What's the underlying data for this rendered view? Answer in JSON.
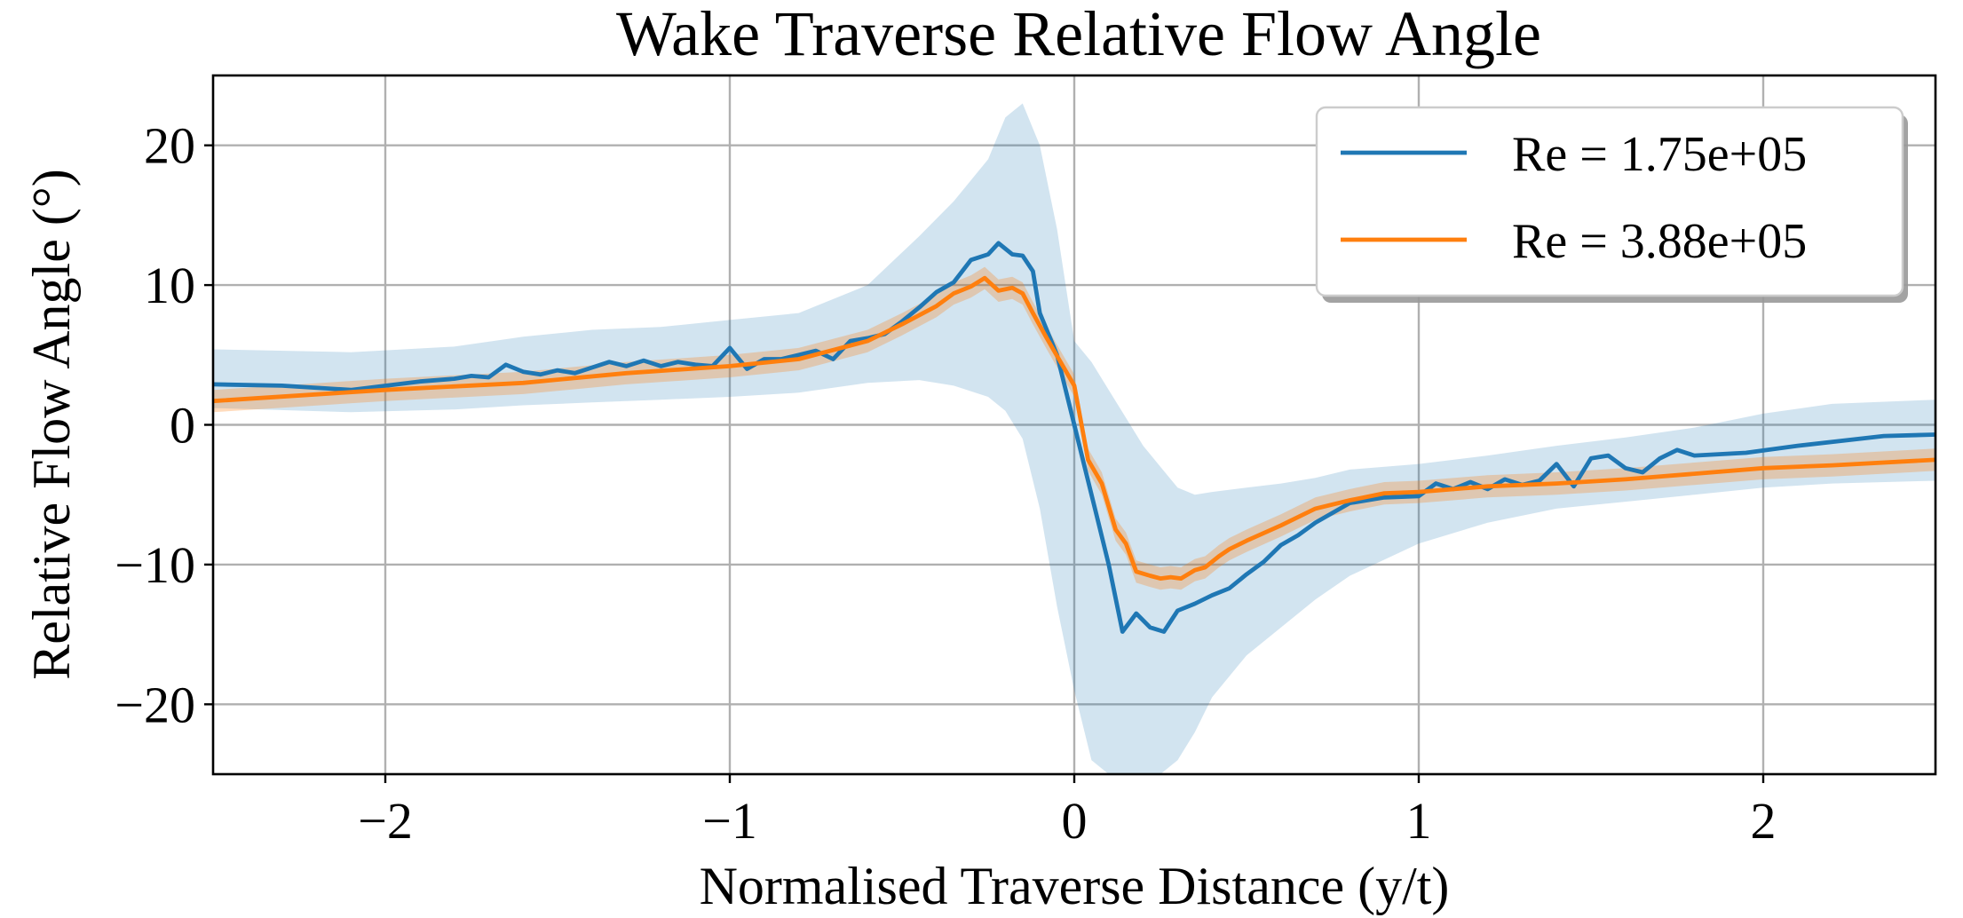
{
  "chart_data": {
    "type": "line",
    "title": "Wake Traverse Relative Flow Angle",
    "xlabel": "Normalised Traverse Distance (y/t)",
    "ylabel": "Relative Flow Angle (°)",
    "xlim": [
      -2.5,
      2.5
    ],
    "ylim": [
      -25,
      25
    ],
    "xticks": [
      -2,
      -1,
      0,
      1,
      2
    ],
    "xtick_labels": [
      "−2",
      "−1",
      "0",
      "1",
      "2"
    ],
    "yticks": [
      -20,
      -10,
      0,
      10,
      20
    ],
    "ytick_labels": [
      "−20",
      "−10",
      "0",
      "10",
      "20"
    ],
    "grid": true,
    "legend_position": "top-right",
    "series": [
      {
        "name": "Re = 1.75e+05",
        "color": "#1f77b4",
        "band_color": "#1f77b4",
        "x": [
          -2.5,
          -2.3,
          -2.1,
          -1.9,
          -1.8,
          -1.75,
          -1.7,
          -1.65,
          -1.6,
          -1.55,
          -1.5,
          -1.45,
          -1.4,
          -1.35,
          -1.3,
          -1.25,
          -1.2,
          -1.15,
          -1.1,
          -1.05,
          -1.0,
          -0.95,
          -0.9,
          -0.85,
          -0.8,
          -0.75,
          -0.7,
          -0.65,
          -0.6,
          -0.55,
          -0.5,
          -0.45,
          -0.4,
          -0.35,
          -0.3,
          -0.25,
          -0.22,
          -0.18,
          -0.15,
          -0.12,
          -0.1,
          -0.05,
          0.0,
          0.03,
          0.06,
          0.1,
          0.14,
          0.18,
          0.22,
          0.26,
          0.3,
          0.35,
          0.4,
          0.45,
          0.5,
          0.55,
          0.6,
          0.65,
          0.7,
          0.8,
          0.9,
          1.0,
          1.05,
          1.1,
          1.15,
          1.2,
          1.25,
          1.3,
          1.35,
          1.4,
          1.45,
          1.5,
          1.55,
          1.6,
          1.65,
          1.7,
          1.75,
          1.8,
          1.95,
          2.1,
          2.35,
          2.5
        ],
        "y": [
          2.9,
          2.8,
          2.5,
          3.1,
          3.3,
          3.5,
          3.4,
          4.3,
          3.8,
          3.6,
          3.9,
          3.7,
          4.1,
          4.5,
          4.2,
          4.6,
          4.2,
          4.5,
          4.3,
          4.2,
          5.5,
          4.0,
          4.7,
          4.7,
          5.0,
          5.3,
          4.7,
          6.0,
          6.2,
          6.5,
          7.4,
          8.4,
          9.5,
          10.2,
          11.8,
          12.2,
          13.0,
          12.2,
          12.1,
          11.0,
          8.0,
          5.0,
          0.0,
          -3.0,
          -6.0,
          -10.0,
          -14.8,
          -13.5,
          -14.5,
          -14.8,
          -13.3,
          -12.8,
          -12.2,
          -11.7,
          -10.7,
          -9.8,
          -8.6,
          -7.9,
          -7.0,
          -5.6,
          -5.2,
          -5.1,
          -4.2,
          -4.6,
          -4.1,
          -4.6,
          -3.9,
          -4.3,
          -4.0,
          -2.8,
          -4.4,
          -2.4,
          -2.2,
          -3.1,
          -3.4,
          -2.4,
          -1.8,
          -2.2,
          -2.0,
          -1.5,
          -0.8,
          -0.7
        ],
        "band_x": [
          -2.5,
          -2.1,
          -1.8,
          -1.6,
          -1.4,
          -1.2,
          -1.0,
          -0.8,
          -0.6,
          -0.45,
          -0.35,
          -0.25,
          -0.2,
          -0.15,
          -0.1,
          -0.05,
          0.0,
          0.05,
          0.1,
          0.15,
          0.2,
          0.25,
          0.3,
          0.35,
          0.4,
          0.5,
          0.6,
          0.7,
          0.8,
          1.0,
          1.2,
          1.4,
          1.6,
          1.8,
          2.0,
          2.2,
          2.5
        ],
        "band_upper": [
          5.4,
          5.2,
          5.6,
          6.3,
          6.8,
          7.0,
          7.5,
          8.0,
          10.0,
          13.5,
          16.0,
          19.0,
          22.0,
          23.0,
          20.0,
          14.0,
          6.0,
          4.5,
          2.5,
          0.5,
          -1.5,
          -3.0,
          -4.5,
          -5.0,
          -4.8,
          -4.5,
          -4.2,
          -3.8,
          -3.2,
          -2.8,
          -2.2,
          -1.5,
          -0.9,
          -0.2,
          0.8,
          1.5,
          1.8
        ],
        "band_lower": [
          1.2,
          0.9,
          1.1,
          1.4,
          1.6,
          1.8,
          2.0,
          2.3,
          3.0,
          3.2,
          2.8,
          2.0,
          1.0,
          -1.0,
          -6.0,
          -13.0,
          -19.0,
          -24.0,
          -25.0,
          -25.0,
          -25.0,
          -25.0,
          -24.0,
          -22.0,
          -19.5,
          -16.5,
          -14.5,
          -12.5,
          -10.8,
          -8.5,
          -7.0,
          -6.0,
          -5.5,
          -5.0,
          -4.5,
          -4.2,
          -4.0
        ]
      },
      {
        "name": "Re = 3.88e+05",
        "color": "#ff7f0e",
        "band_color": "#ff7f0e",
        "x": [
          -2.5,
          -2.0,
          -1.6,
          -1.3,
          -1.0,
          -0.8,
          -0.6,
          -0.5,
          -0.4,
          -0.35,
          -0.3,
          -0.26,
          -0.22,
          -0.18,
          -0.15,
          -0.12,
          -0.08,
          -0.04,
          0.0,
          0.04,
          0.08,
          0.12,
          0.15,
          0.18,
          0.22,
          0.25,
          0.28,
          0.31,
          0.35,
          0.38,
          0.42,
          0.45,
          0.5,
          0.6,
          0.7,
          0.8,
          0.9,
          1.0,
          1.2,
          1.4,
          1.6,
          1.8,
          2.0,
          2.2,
          2.5
        ],
        "y": [
          1.7,
          2.5,
          3.0,
          3.7,
          4.2,
          4.7,
          6.0,
          7.2,
          8.5,
          9.4,
          9.9,
          10.5,
          9.6,
          9.8,
          9.4,
          8.0,
          6.2,
          4.5,
          2.8,
          -2.5,
          -4.2,
          -7.5,
          -8.5,
          -10.5,
          -10.8,
          -11.0,
          -10.9,
          -11.0,
          -10.4,
          -10.2,
          -9.4,
          -8.9,
          -8.3,
          -7.2,
          -6.0,
          -5.4,
          -4.9,
          -4.8,
          -4.4,
          -4.2,
          -3.9,
          -3.5,
          -3.1,
          -2.9,
          -2.5
        ],
        "band_offset": 0.8
      }
    ]
  }
}
